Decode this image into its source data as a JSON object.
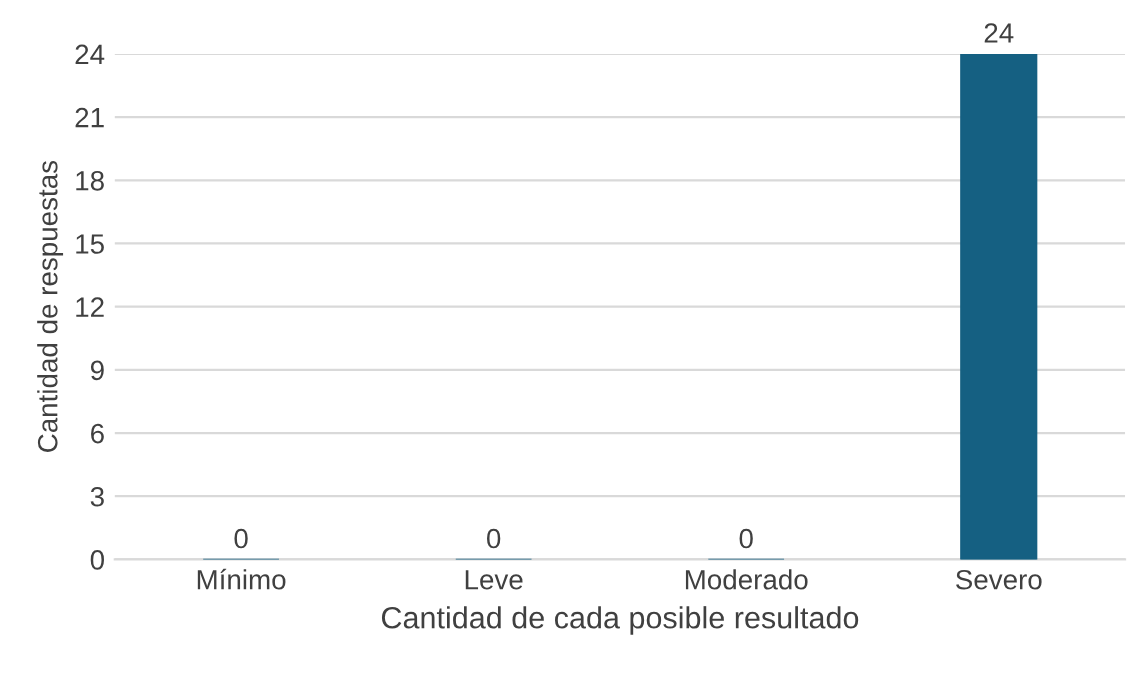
{
  "chart_data": {
    "type": "bar",
    "xlabel": "Cantidad de cada posible resultado",
    "ylabel": "Cantidad de respuestas",
    "categories": [
      "Mínimo",
      "Leve",
      "Moderado",
      "Severo"
    ],
    "values": [
      0,
      0,
      0,
      24
    ],
    "color": "#156082",
    "ylim": [
      0,
      24
    ],
    "yticks": [
      0,
      3,
      6,
      9,
      12,
      15,
      18,
      21,
      24
    ],
    "grid": "y",
    "data_labels": true
  }
}
